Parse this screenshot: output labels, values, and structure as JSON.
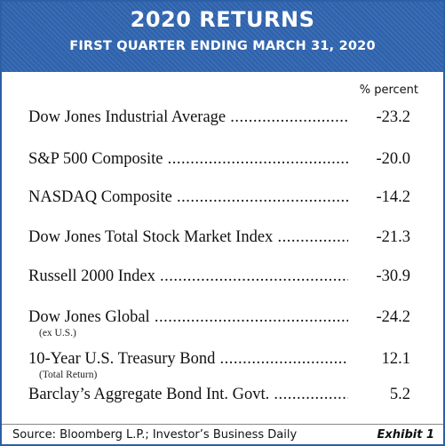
{
  "header": {
    "title": "2020 RETURNS",
    "subtitle": "FIRST QUARTER ENDING MARCH 31, 2020"
  },
  "unit_label": "% percent",
  "chart_data": {
    "type": "table",
    "title": "2020 RETURNS",
    "subtitle": "FIRST QUARTER ENDING MARCH 31, 2020",
    "columns": [
      "",
      "% percent"
    ],
    "rows": [
      {
        "label": "Dow Jones Industrial Average",
        "note": "",
        "value": "-23.2"
      },
      {
        "label": "S&P 500 Composite",
        "note": "",
        "value": "-20.0"
      },
      {
        "label": "NASDAQ Composite",
        "note": "",
        "value": "-14.2"
      },
      {
        "label": "Dow Jones Total Stock Market Index",
        "note": "",
        "value": "-21.3"
      },
      {
        "label": "Russell 2000 Index",
        "note": "",
        "value": "-30.9"
      },
      {
        "label": "Dow Jones Global",
        "note": "(ex U.S.)",
        "value": "-24.2"
      },
      {
        "label": "10-Year U.S. Treasury Bond",
        "note": "(Total Return)",
        "value": "12.1"
      },
      {
        "label": "Barclay’s Aggregate Bond Int. Govt.",
        "note": "",
        "value": "5.2"
      }
    ]
  },
  "footer": {
    "source": "Source: Bloomberg L.P.; Investor’s Business Daily",
    "exhibit": "Exhibit 1"
  }
}
